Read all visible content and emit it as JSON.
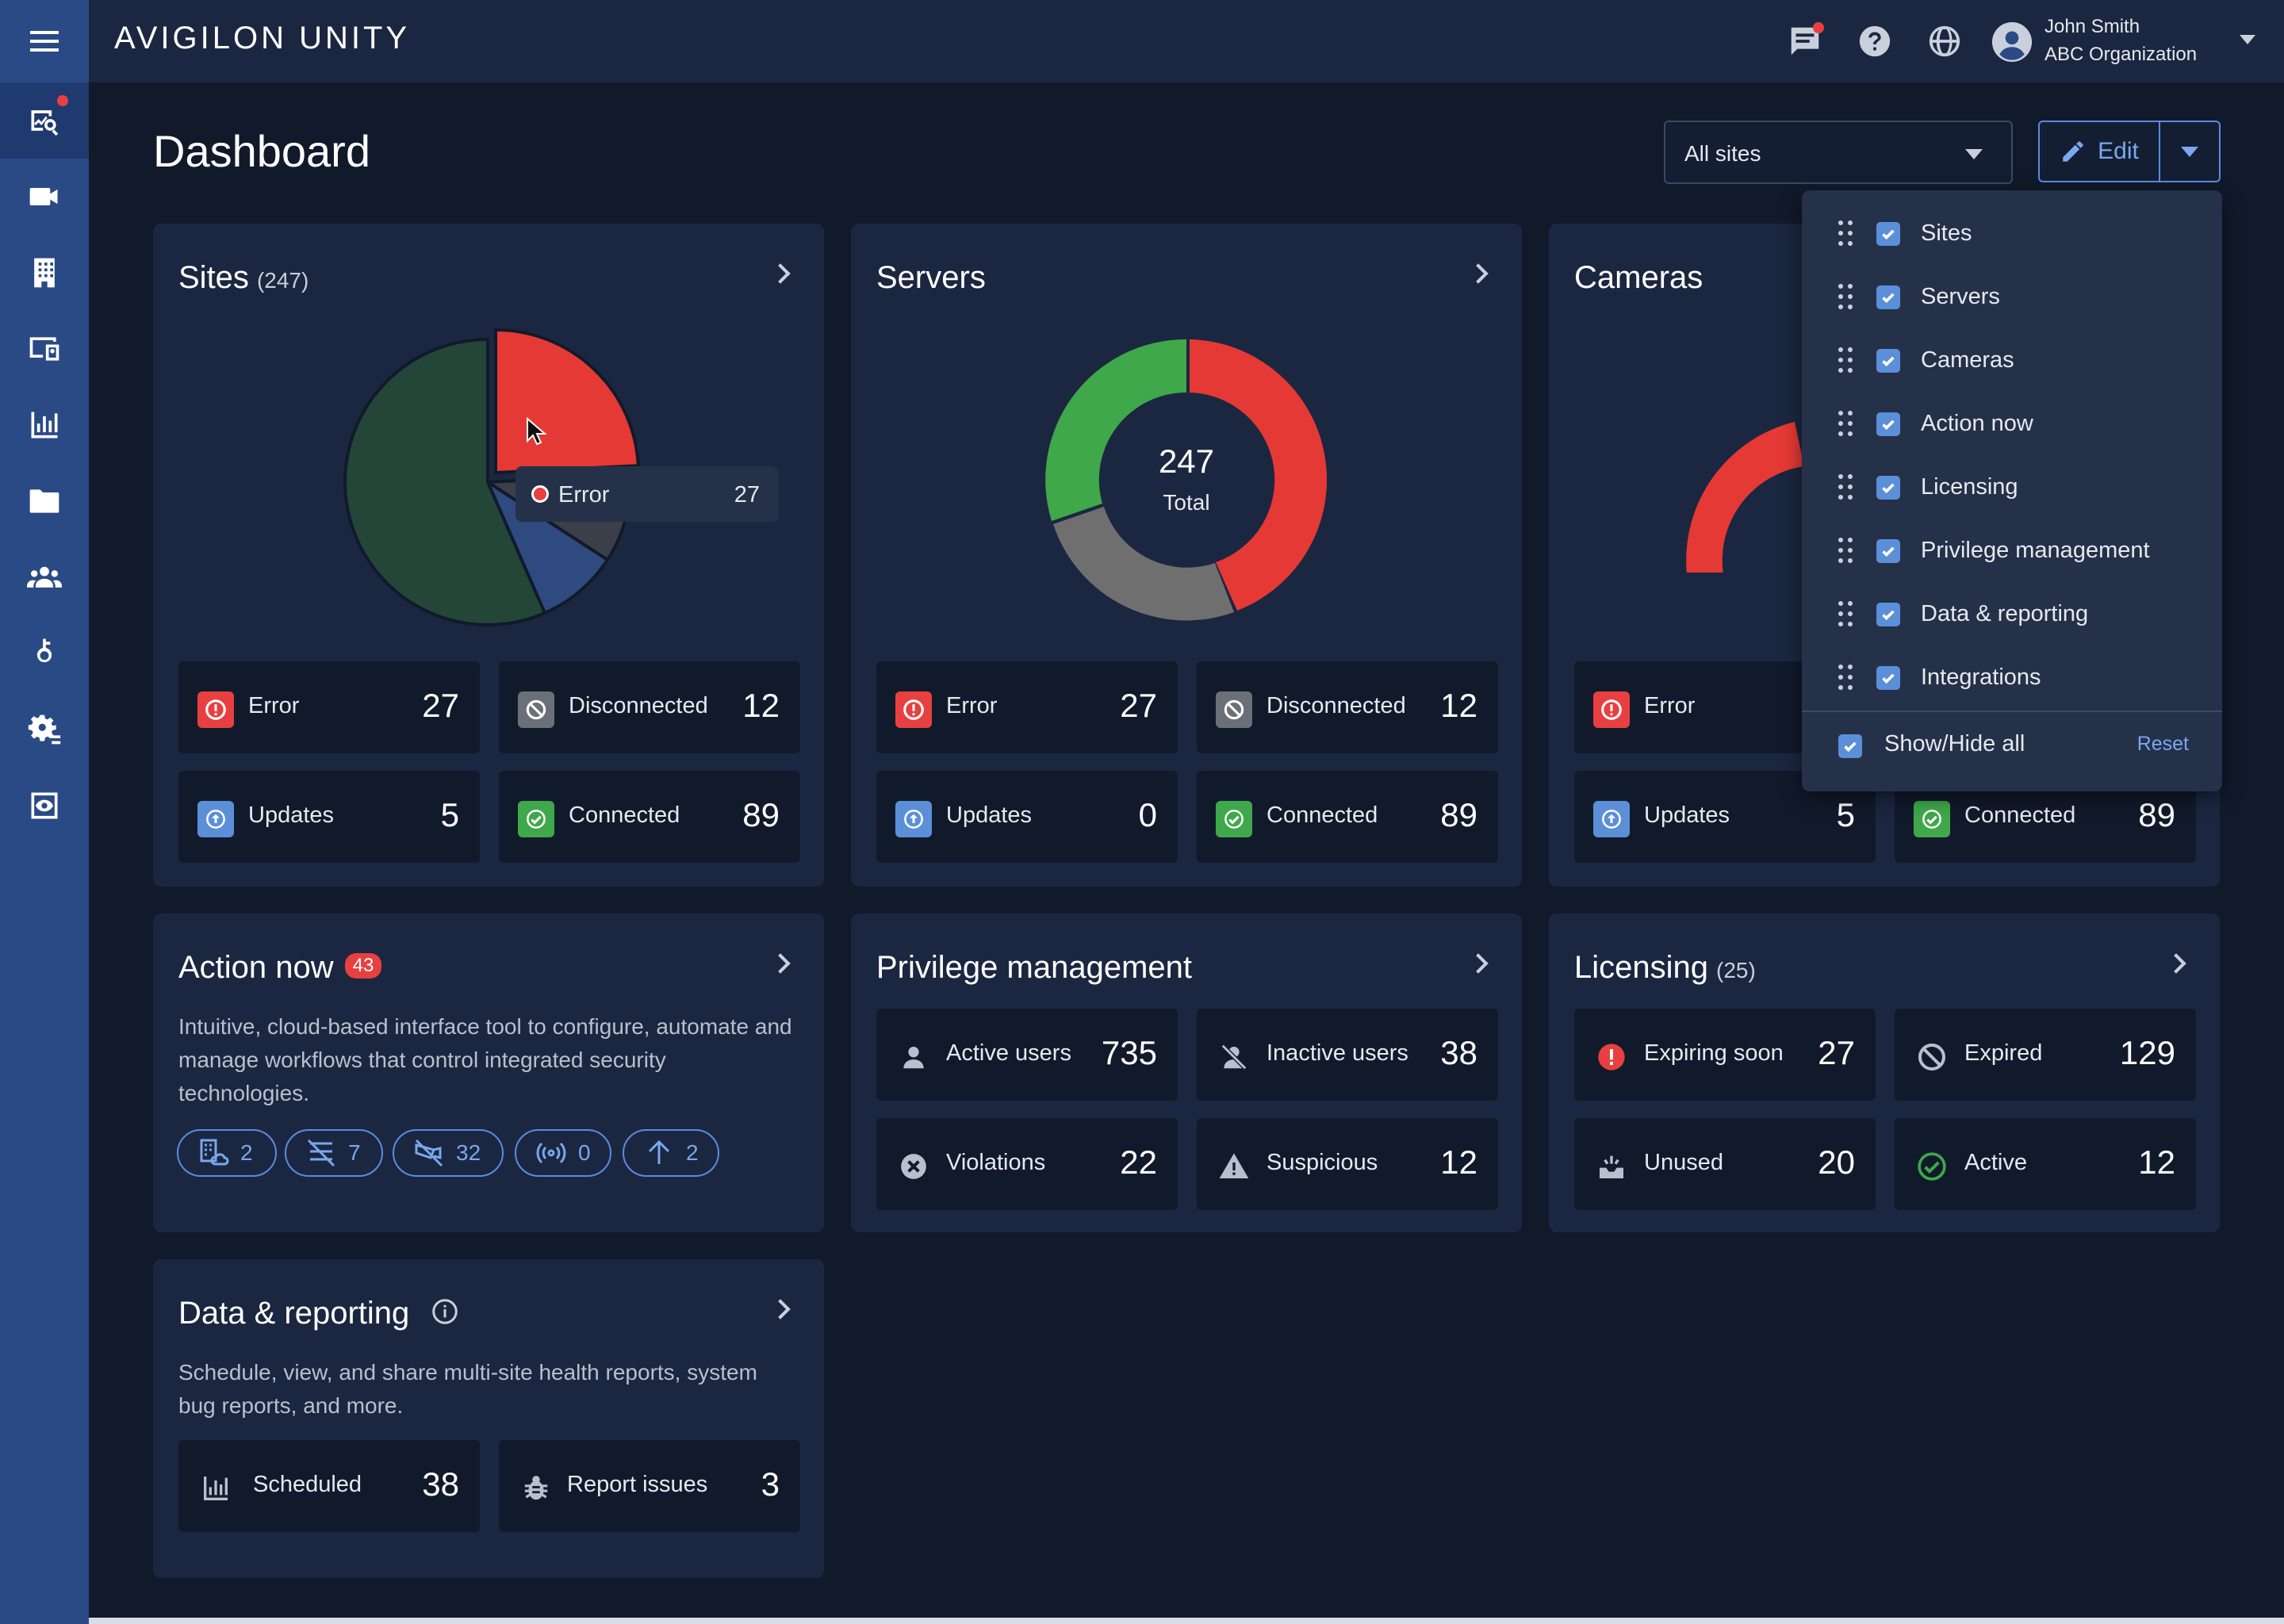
{
  "app": {
    "logo": "AVIGILON UNITY"
  },
  "header": {
    "user_name": "John Smith",
    "user_org": "ABC Organization",
    "icons": [
      "chat-icon",
      "help-icon",
      "globe-icon",
      "user-avatar-icon"
    ]
  },
  "sidebar": {
    "items": [
      {
        "icon": "monitoring-icon",
        "active": true
      },
      {
        "icon": "video-camera-icon"
      },
      {
        "icon": "building-icon"
      },
      {
        "icon": "devices-icon"
      },
      {
        "icon": "bar-chart-icon"
      },
      {
        "icon": "folder-icon"
      },
      {
        "icon": "people-icon"
      },
      {
        "icon": "key-icon"
      },
      {
        "icon": "settings-gear-icon"
      },
      {
        "icon": "view-eye-icon"
      }
    ]
  },
  "page": {
    "title": "Dashboard",
    "site_filter": "All sites",
    "edit_label": "Edit"
  },
  "sites": {
    "title": "Sites",
    "count": "(247)",
    "tooltip": {
      "label": "Error",
      "value": "27"
    },
    "tiles": [
      {
        "label": "Error",
        "value": "27"
      },
      {
        "label": "Disconnected",
        "value": "12"
      },
      {
        "label": "Updates",
        "value": "5"
      },
      {
        "label": "Connected",
        "value": "89"
      }
    ]
  },
  "servers": {
    "title": "Servers",
    "center_value": "247",
    "center_label": "Total",
    "tiles": [
      {
        "label": "Error",
        "value": "27"
      },
      {
        "label": "Disconnected",
        "value": "12"
      },
      {
        "label": "Updates",
        "value": "0"
      },
      {
        "label": "Connected",
        "value": "89"
      }
    ]
  },
  "cameras": {
    "title": "Cameras",
    "tiles": [
      {
        "label": "Error",
        "value": ""
      },
      {
        "label": "Updates",
        "value": "5"
      },
      {
        "label": "Connected",
        "value": "89"
      }
    ]
  },
  "action_now": {
    "title": "Action now",
    "badge": "43",
    "description": "Intuitive, cloud-based interface tool to configure, automate and manage workflows that control integrated security technologies.",
    "chips": [
      {
        "icon": "site-cloud-icon",
        "value": "2"
      },
      {
        "icon": "server-off-icon",
        "value": "7"
      },
      {
        "icon": "camera-off-icon",
        "value": "32"
      },
      {
        "icon": "broadcast-icon",
        "value": "0"
      },
      {
        "icon": "arrow-up-icon",
        "value": "2"
      }
    ]
  },
  "privilege": {
    "title": "Privilege management",
    "tiles": [
      {
        "label": "Active users",
        "value": "735"
      },
      {
        "label": "Inactive users",
        "value": "38"
      },
      {
        "label": "Violations",
        "value": "22"
      },
      {
        "label": "Suspicious",
        "value": "12"
      }
    ]
  },
  "licensing": {
    "title": "Licensing",
    "count": "(25)",
    "tiles": [
      {
        "label": "Expiring soon",
        "value": "27"
      },
      {
        "label": "Expired",
        "value": "129"
      },
      {
        "label": "Unused",
        "value": "20"
      },
      {
        "label": "Active",
        "value": "12"
      }
    ]
  },
  "reporting": {
    "title": "Data & reporting",
    "description": "Schedule, view, and share multi-site health reports, system bug reports, and more.",
    "tiles": [
      {
        "label": "Scheduled",
        "value": "38"
      },
      {
        "label": "Report issues",
        "value": "3"
      }
    ]
  },
  "edit_menu": {
    "items": [
      {
        "label": "Sites",
        "checked": true
      },
      {
        "label": "Servers",
        "checked": true
      },
      {
        "label": "Cameras",
        "checked": true
      },
      {
        "label": "Action now",
        "checked": true
      },
      {
        "label": "Licensing",
        "checked": true
      },
      {
        "label": "Privilege management",
        "checked": true
      },
      {
        "label": "Data & reporting",
        "checked": true
      },
      {
        "label": "Integrations",
        "checked": true
      }
    ],
    "show_hide_all": "Show/Hide all",
    "reset": "Reset"
  },
  "colors": {
    "error": "#e84040",
    "disconnected": "#6b6f78",
    "updates": "#5b8fd8",
    "connected": "#3fa84a",
    "sidebar": "#2a4a86",
    "card": "#1b2740",
    "background": "#111a2b"
  }
}
